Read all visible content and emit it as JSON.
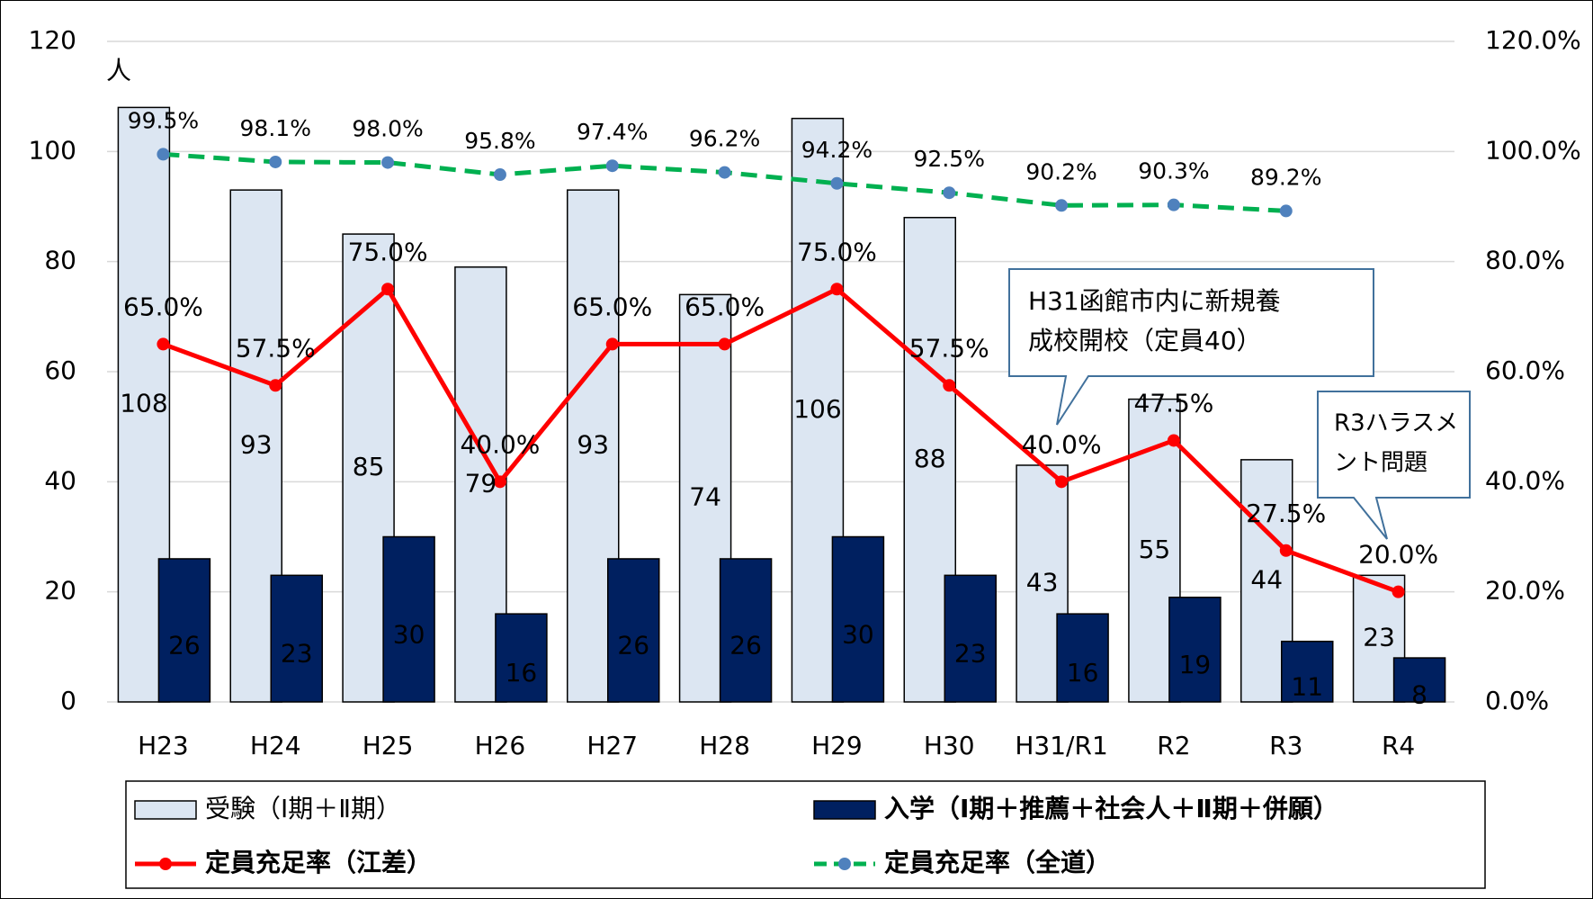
{
  "chart_data": {
    "type": "combo",
    "y_label": "人",
    "categories": [
      "H23",
      "H24",
      "H25",
      "H26",
      "H27",
      "H28",
      "H29",
      "H30",
      "H31/R1",
      "R2",
      "R3",
      "R4"
    ],
    "series": [
      {
        "name": "受験（Ⅰ期＋Ⅱ期）",
        "type": "bar",
        "color": "#dce6f2",
        "values": [
          108,
          93,
          85,
          79,
          93,
          74,
          106,
          88,
          43,
          55,
          44,
          23
        ]
      },
      {
        "name": "入学（Ⅰ期＋推薦＋社会人＋Ⅱ期＋併願）",
        "type": "bar",
        "color": "#002060",
        "values": [
          26,
          23,
          30,
          16,
          26,
          26,
          30,
          23,
          16,
          19,
          11,
          8
        ]
      },
      {
        "name": "定員充足率（江差）",
        "type": "line",
        "axis": "y2",
        "color": "#ff0000",
        "marker_color": "#ff0000",
        "dashed": false,
        "values": [
          65,
          57.5,
          75,
          40,
          65,
          65,
          75,
          57.5,
          40,
          47.5,
          27.5,
          20
        ],
        "value_labels": [
          "65.0%",
          "57.5%",
          "75.0%",
          "40.0%",
          "65.0%",
          "65.0%",
          "75.0%",
          "57.5%",
          "40.0%",
          "47.5%",
          "27.5%",
          "20.0%"
        ]
      },
      {
        "name": "定員充足率（全道）",
        "type": "line",
        "axis": "y2",
        "color": "#00b050",
        "marker_color": "#4f81bd",
        "dashed": true,
        "values": [
          99.5,
          98.1,
          98.0,
          95.8,
          97.4,
          96.2,
          94.2,
          92.5,
          90.2,
          90.3,
          89.2,
          null
        ],
        "value_labels": [
          "99.5%",
          "98.1%",
          "98.0%",
          "95.8%",
          "97.4%",
          "96.2%",
          "94.2%",
          "92.5%",
          "90.2%",
          "90.3%",
          "89.2%",
          null
        ]
      }
    ],
    "ylim": [
      0,
      120
    ],
    "yticks": [
      0,
      20,
      40,
      60,
      80,
      100,
      120
    ],
    "y2lim": [
      0,
      120
    ],
    "y2ticks": [
      {
        "value": 0,
        "label": "0.0%"
      },
      {
        "value": 20,
        "label": "20.0%"
      },
      {
        "value": 40,
        "label": "40.0%"
      },
      {
        "value": 60,
        "label": "60.0%"
      },
      {
        "value": 80,
        "label": "80.0%"
      },
      {
        "value": 100,
        "label": "100.0%"
      },
      {
        "value": 120,
        "label": "120.0%"
      }
    ],
    "grid": true,
    "annotations": [
      {
        "lines": [
          "H31函館市内に新規養",
          "成校開校（定員40）"
        ]
      },
      {
        "lines": [
          "R3ハラスメ",
          "ント問題"
        ]
      }
    ]
  }
}
